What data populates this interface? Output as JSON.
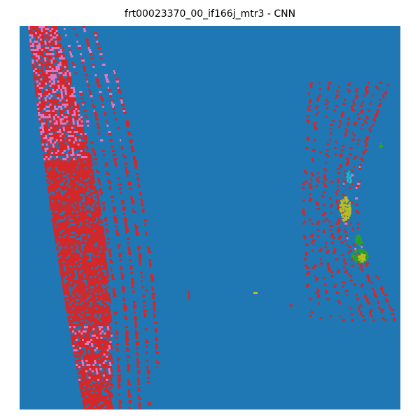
{
  "figure": {
    "title": "frt00023370_00_if166j_mtr3 - CNN"
  },
  "colors": {
    "background_class": "#1f77b4",
    "red_class": "#d62728",
    "pink_class": "#e377c2",
    "green_class": "#2ca02c",
    "olive_class": "#bcbd22",
    "cyan_class": "#17becf"
  }
}
